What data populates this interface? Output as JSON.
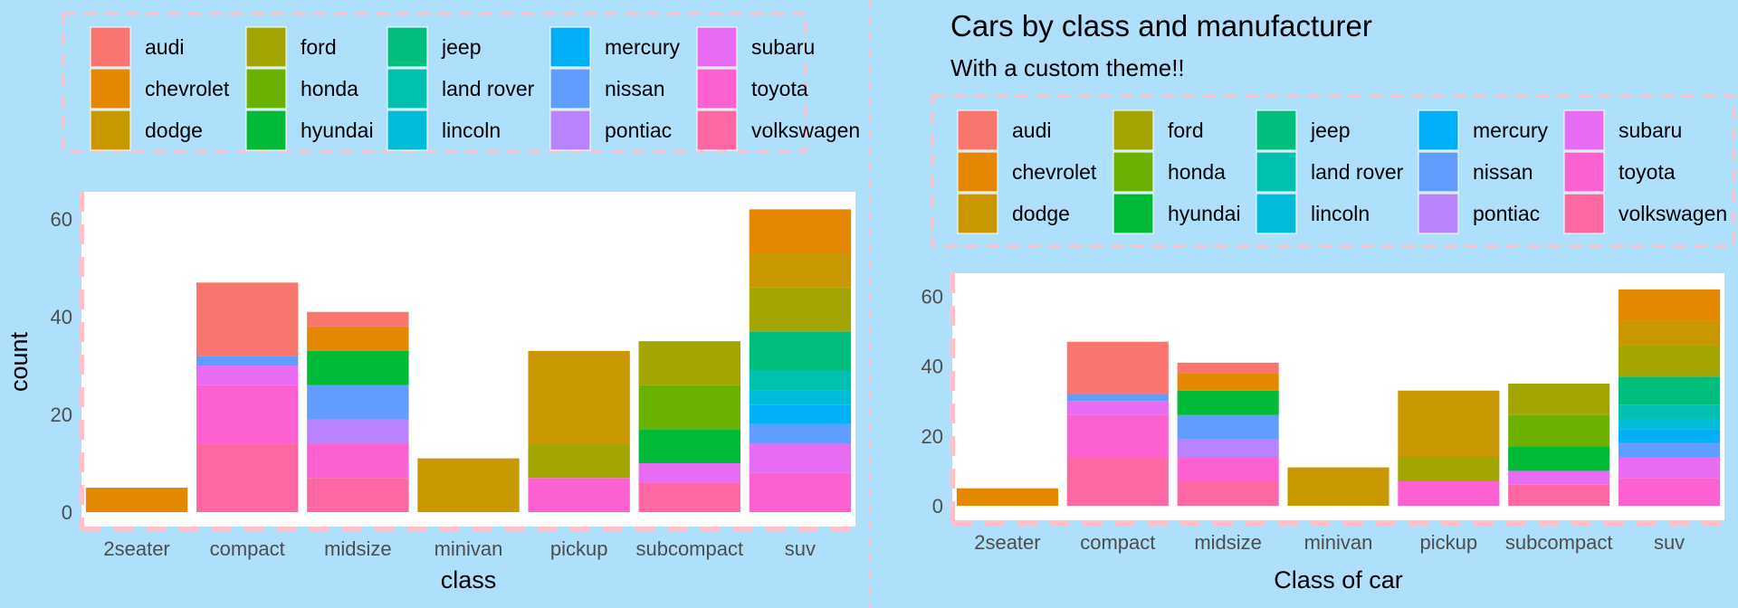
{
  "colors": {
    "background": "#aee0fb",
    "panel": "#ffffff",
    "dash": "#ffc0cb",
    "text": "#000000",
    "tick_text": "#4d4d4d"
  },
  "manufacturers": [
    {
      "name": "audi",
      "color": "#f8766d"
    },
    {
      "name": "chevrolet",
      "color": "#e58700"
    },
    {
      "name": "dodge",
      "color": "#c99800"
    },
    {
      "name": "ford",
      "color": "#a3a500"
    },
    {
      "name": "honda",
      "color": "#6bb100"
    },
    {
      "name": "hyundai",
      "color": "#00ba38"
    },
    {
      "name": "jeep",
      "color": "#00bf7d"
    },
    {
      "name": "land rover",
      "color": "#00c0af"
    },
    {
      "name": "lincoln",
      "color": "#00bcd8"
    },
    {
      "name": "mercury",
      "color": "#00b0f6"
    },
    {
      "name": "nissan",
      "color": "#619cff"
    },
    {
      "name": "pontiac",
      "color": "#b983ff"
    },
    {
      "name": "subaru",
      "color": "#e76bf3"
    },
    {
      "name": "toyota",
      "color": "#fd61d1"
    },
    {
      "name": "volkswagen",
      "color": "#ff67a4"
    }
  ],
  "chart_data": [
    {
      "type": "bar",
      "stacked": true,
      "title": "",
      "subtitle": "",
      "xlabel": "class",
      "ylabel": "count",
      "ylim": [
        0,
        63
      ],
      "yticks": [
        0,
        20,
        40,
        60
      ],
      "legend_position": "top",
      "categories": [
        "2seater",
        "compact",
        "midsize",
        "minivan",
        "pickup",
        "subcompact",
        "suv"
      ],
      "series": [
        {
          "name": "audi",
          "values": [
            0,
            15,
            3,
            0,
            0,
            0,
            0
          ]
        },
        {
          "name": "chevrolet",
          "values": [
            5,
            0,
            5,
            0,
            0,
            0,
            9
          ]
        },
        {
          "name": "dodge",
          "values": [
            0,
            0,
            0,
            11,
            19,
            0,
            7
          ]
        },
        {
          "name": "ford",
          "values": [
            0,
            0,
            0,
            0,
            7,
            9,
            9
          ]
        },
        {
          "name": "honda",
          "values": [
            0,
            0,
            0,
            0,
            0,
            9,
            0
          ]
        },
        {
          "name": "hyundai",
          "values": [
            0,
            0,
            7,
            0,
            0,
            7,
            0
          ]
        },
        {
          "name": "jeep",
          "values": [
            0,
            0,
            0,
            0,
            0,
            0,
            8
          ]
        },
        {
          "name": "land rover",
          "values": [
            0,
            0,
            0,
            0,
            0,
            0,
            4
          ]
        },
        {
          "name": "lincoln",
          "values": [
            0,
            0,
            0,
            0,
            0,
            0,
            3
          ]
        },
        {
          "name": "mercury",
          "values": [
            0,
            0,
            0,
            0,
            0,
            0,
            4
          ]
        },
        {
          "name": "nissan",
          "values": [
            0,
            2,
            7,
            0,
            0,
            0,
            4
          ]
        },
        {
          "name": "pontiac",
          "values": [
            0,
            0,
            5,
            0,
            0,
            0,
            0
          ]
        },
        {
          "name": "subaru",
          "values": [
            0,
            4,
            0,
            0,
            0,
            4,
            6
          ]
        },
        {
          "name": "toyota",
          "values": [
            0,
            12,
            7,
            0,
            7,
            0,
            8
          ]
        },
        {
          "name": "volkswagen",
          "values": [
            0,
            14,
            7,
            0,
            0,
            6,
            0
          ]
        }
      ]
    },
    {
      "type": "bar",
      "stacked": true,
      "title": "Cars by class and manufacturer",
      "subtitle": "With a custom theme!!",
      "xlabel": "Class of car",
      "ylabel": "",
      "ylim": [
        0,
        63
      ],
      "yticks": [
        0,
        20,
        40,
        60
      ],
      "legend_position": "top",
      "categories": [
        "2seater",
        "compact",
        "midsize",
        "minivan",
        "pickup",
        "subcompact",
        "suv"
      ],
      "series": [
        {
          "name": "audi",
          "values": [
            0,
            15,
            3,
            0,
            0,
            0,
            0
          ]
        },
        {
          "name": "chevrolet",
          "values": [
            5,
            0,
            5,
            0,
            0,
            0,
            9
          ]
        },
        {
          "name": "dodge",
          "values": [
            0,
            0,
            0,
            11,
            19,
            0,
            7
          ]
        },
        {
          "name": "ford",
          "values": [
            0,
            0,
            0,
            0,
            7,
            9,
            9
          ]
        },
        {
          "name": "honda",
          "values": [
            0,
            0,
            0,
            0,
            0,
            9,
            0
          ]
        },
        {
          "name": "hyundai",
          "values": [
            0,
            0,
            7,
            0,
            0,
            7,
            0
          ]
        },
        {
          "name": "jeep",
          "values": [
            0,
            0,
            0,
            0,
            0,
            0,
            8
          ]
        },
        {
          "name": "land rover",
          "values": [
            0,
            0,
            0,
            0,
            0,
            0,
            4
          ]
        },
        {
          "name": "lincoln",
          "values": [
            0,
            0,
            0,
            0,
            0,
            0,
            3
          ]
        },
        {
          "name": "mercury",
          "values": [
            0,
            0,
            0,
            0,
            0,
            0,
            4
          ]
        },
        {
          "name": "nissan",
          "values": [
            0,
            2,
            7,
            0,
            0,
            0,
            4
          ]
        },
        {
          "name": "pontiac",
          "values": [
            0,
            0,
            5,
            0,
            0,
            0,
            0
          ]
        },
        {
          "name": "subaru",
          "values": [
            0,
            4,
            0,
            0,
            0,
            4,
            6
          ]
        },
        {
          "name": "toyota",
          "values": [
            0,
            12,
            7,
            0,
            7,
            0,
            8
          ]
        },
        {
          "name": "volkswagen",
          "values": [
            0,
            14,
            7,
            0,
            0,
            6,
            0
          ]
        }
      ]
    }
  ]
}
